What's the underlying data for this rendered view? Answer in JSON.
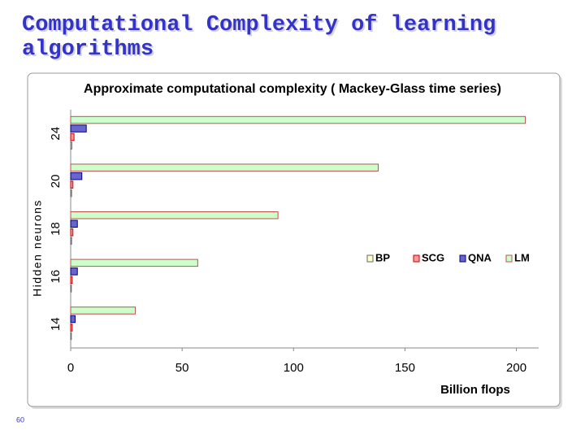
{
  "slide_title": "Computational Complexity of learning algorithms",
  "page_number": "60",
  "chart_data": {
    "type": "hbar",
    "title": "Approximate computational complexity ( Mackey-Glass time series)",
    "x_label": "Billion flops",
    "y_label": "Hidden neurons",
    "categories": [
      "14",
      "16",
      "18",
      "20",
      "24"
    ],
    "series": [
      {
        "name": "BP",
        "color": "#ffffcc",
        "values": [
          0.3,
          0.3,
          0.4,
          0.4,
          0.5
        ]
      },
      {
        "name": "SCG",
        "color": "#ff9999",
        "values": [
          0.7,
          0.7,
          1,
          1,
          1.5
        ]
      },
      {
        "name": "QNA",
        "color": "#6666cc",
        "values": [
          2,
          3,
          3,
          5,
          7
        ]
      },
      {
        "name": "LM",
        "color": "#ccffcc",
        "values": [
          29,
          57,
          93,
          138,
          204
        ]
      }
    ],
    "xlim": [
      0,
      210
    ],
    "xticks": [
      0,
      50,
      100,
      150,
      200
    ],
    "legend": "right"
  }
}
